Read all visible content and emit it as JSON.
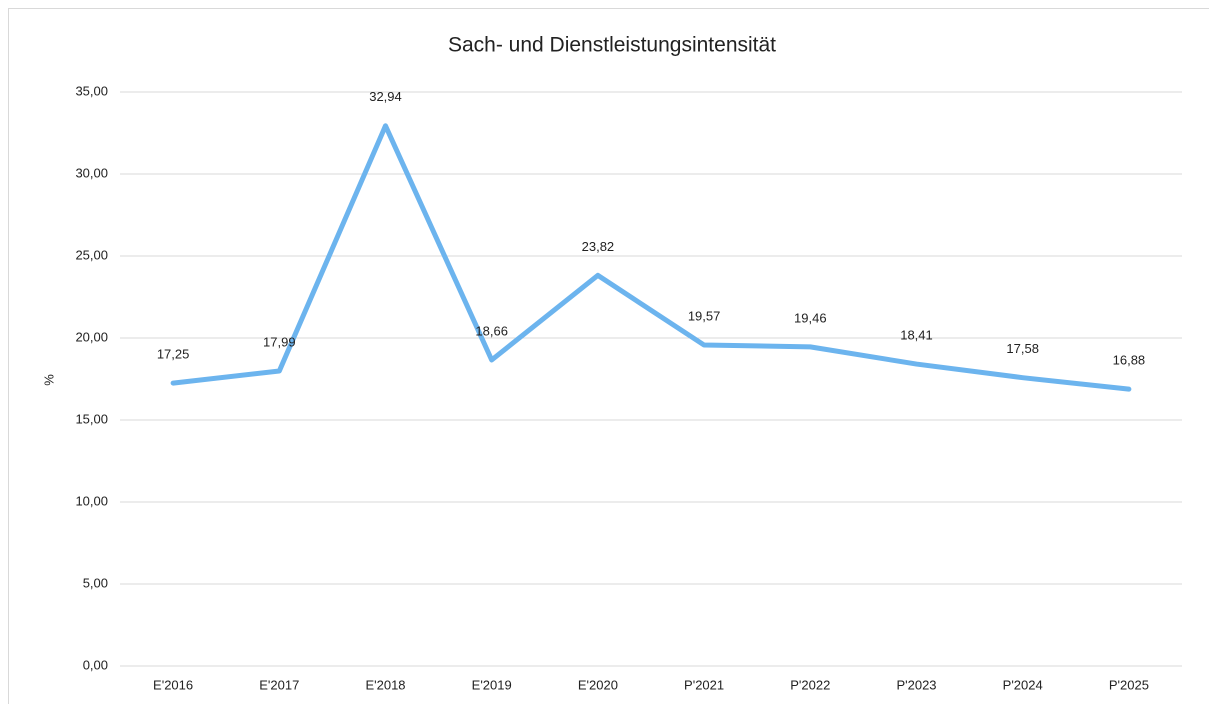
{
  "chart_data": {
    "type": "line",
    "title": "Sach- und Dienstleistungsintensität",
    "y_label": "%",
    "categories": [
      "E'2016",
      "E'2017",
      "E'2018",
      "E'2019",
      "E'2020",
      "P'2021",
      "P'2022",
      "P'2023",
      "P'2024",
      "P'2025"
    ],
    "series": [
      {
        "name": "Sach- und Dienstleistungsintensität",
        "color": "#6cb4ee",
        "values": [
          17.25,
          17.99,
          32.94,
          18.66,
          23.82,
          19.57,
          19.46,
          18.41,
          17.58,
          16.88
        ],
        "value_labels": [
          "17,25",
          "17,99",
          "32,94",
          "18,66",
          "23,82",
          "19,57",
          "19,46",
          "18,41",
          "17,58",
          "16,88"
        ]
      }
    ],
    "ylim": [
      0,
      35
    ],
    "yticks": [
      {
        "value": 0,
        "label": "0,00"
      },
      {
        "value": 5,
        "label": "5,00"
      },
      {
        "value": 10,
        "label": "10,00"
      },
      {
        "value": 15,
        "label": "15,00"
      },
      {
        "value": 20,
        "label": "20,00"
      },
      {
        "value": 25,
        "label": "25,00"
      },
      {
        "value": 30,
        "label": "30,00"
      },
      {
        "value": 35,
        "label": "35,00"
      }
    ],
    "grid": true
  }
}
